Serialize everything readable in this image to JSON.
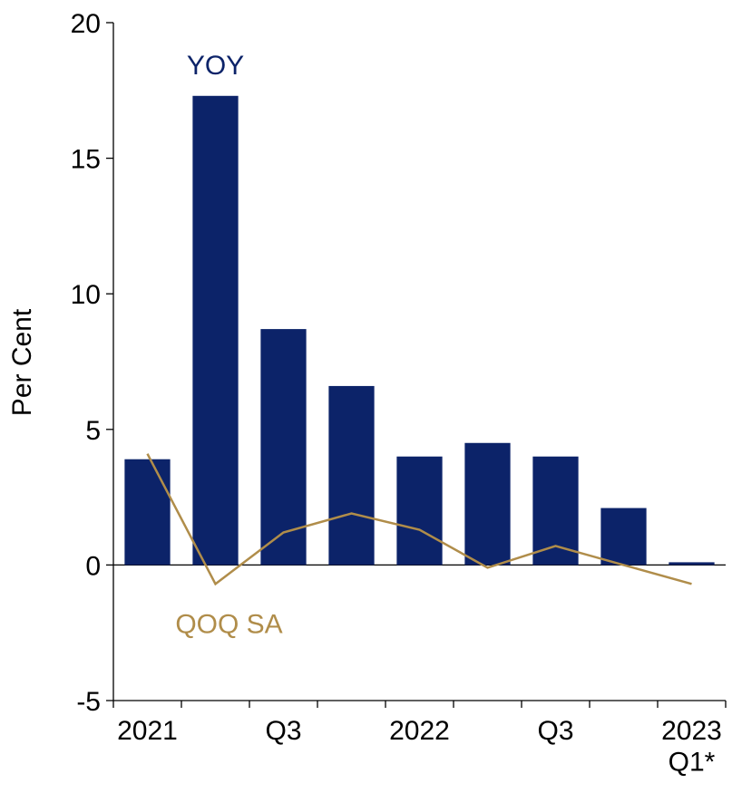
{
  "chart_data": {
    "type": "bar",
    "y_label": "Per Cent",
    "categories": [
      "2021",
      null,
      "Q3",
      null,
      "2022",
      null,
      "Q3",
      null,
      "2023\nQ1*"
    ],
    "series": [
      {
        "name": "YOY",
        "type": "bar",
        "color": "#0c2369",
        "values": [
          3.9,
          17.3,
          8.7,
          6.6,
          4.0,
          4.5,
          4.0,
          2.1,
          0.1
        ]
      },
      {
        "name": "QOQ SA",
        "type": "line",
        "color": "#b08d4a",
        "values": [
          4.1,
          -0.7,
          1.2,
          1.9,
          1.3,
          -0.1,
          0.7,
          0.0,
          -0.7
        ]
      }
    ],
    "ylim": [
      -5,
      20
    ],
    "yticks": [
      -5,
      0,
      5,
      10,
      15,
      20
    ],
    "grid": false
  }
}
